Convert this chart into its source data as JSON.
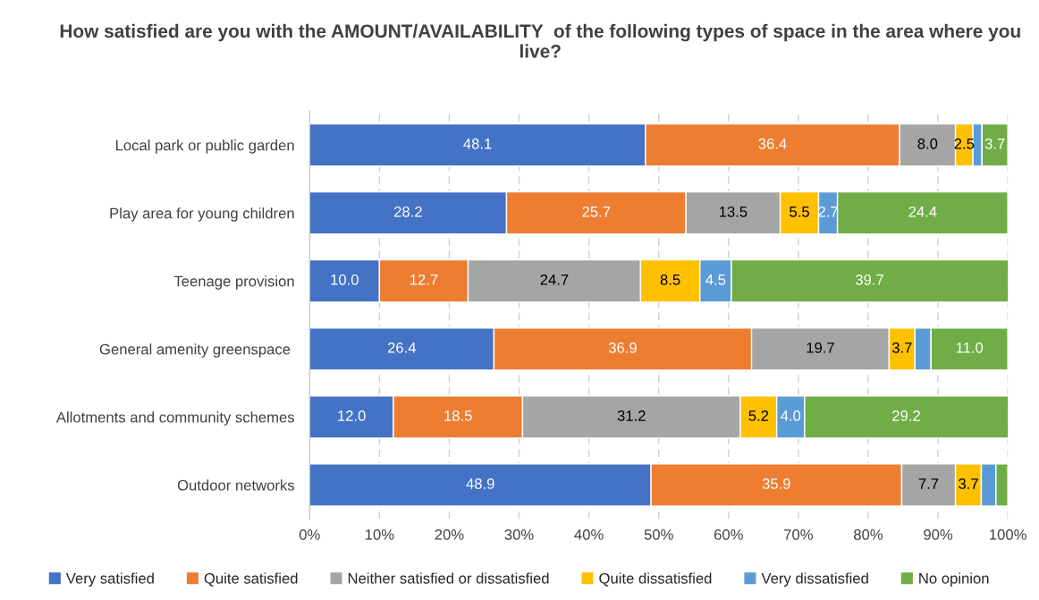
{
  "chart_data": {
    "type": "bar",
    "orientation": "horizontal",
    "stacked": true,
    "title": "How satisfied are you with the AMOUNT/AVAILABILITY  of the following types of space in the area where you live?",
    "categories": [
      "Local park or public garden",
      "Play area for young children",
      "Teenage provision",
      "General amenity greenspace ",
      "Allotments and community schemes",
      "Outdoor networks"
    ],
    "series": [
      {
        "name": "Very satisfied",
        "color": "#4472c4",
        "values": [
          48.1,
          28.2,
          10.0,
          26.4,
          12.0,
          48.9
        ],
        "value_labels": [
          "48.1",
          "28.2",
          "10.0",
          "26.4",
          "12.0",
          "48.9"
        ]
      },
      {
        "name": "Quite satisfied",
        "color": "#ed7d31",
        "values": [
          36.4,
          25.7,
          12.7,
          36.9,
          18.5,
          35.9
        ],
        "value_labels": [
          "36.4",
          "25.7",
          "12.7",
          "36.9",
          "18.5",
          "35.9"
        ]
      },
      {
        "name": "Neither satisfied or dissatisfied",
        "color": "#a5a5a5",
        "values": [
          8.0,
          13.5,
          24.7,
          19.7,
          31.2,
          7.7
        ],
        "value_labels": [
          "8.0",
          "13.5",
          "24.7",
          "19.7",
          "31.2",
          "7.7"
        ]
      },
      {
        "name": "Quite dissatisfied",
        "color": "#ffc000",
        "values": [
          2.5,
          5.5,
          8.5,
          3.7,
          5.2,
          3.7
        ],
        "value_labels": [
          "2.5",
          "5.5",
          "8.5",
          "3.7",
          "5.2",
          "3.7"
        ]
      },
      {
        "name": "Very dissatisfied",
        "color": "#5b9bd5",
        "values": [
          1.3,
          2.7,
          4.5,
          2.3,
          4.0,
          2.1
        ],
        "value_labels": [
          null,
          "2.7",
          "4.5",
          null,
          "4.0",
          null
        ]
      },
      {
        "name": "No opinion",
        "color": "#70ad47",
        "values": [
          3.7,
          24.4,
          39.7,
          11.0,
          29.2,
          1.7
        ],
        "value_labels": [
          "3.7",
          "24.4",
          "39.7",
          "11.0",
          "29.2",
          null
        ]
      }
    ],
    "xlim": [
      0,
      100
    ],
    "xticks": [
      {
        "value": 0,
        "label": "0%"
      },
      {
        "value": 10,
        "label": "10%"
      },
      {
        "value": 20,
        "label": "20%"
      },
      {
        "value": 30,
        "label": "30%"
      },
      {
        "value": 40,
        "label": "40%"
      },
      {
        "value": 50,
        "label": "50%"
      },
      {
        "value": 60,
        "label": "60%"
      },
      {
        "value": 70,
        "label": "70%"
      },
      {
        "value": 80,
        "label": "80%"
      },
      {
        "value": 90,
        "label": "90%"
      },
      {
        "value": 100,
        "label": "100%"
      }
    ],
    "grid": "x",
    "legend": "bottom"
  }
}
